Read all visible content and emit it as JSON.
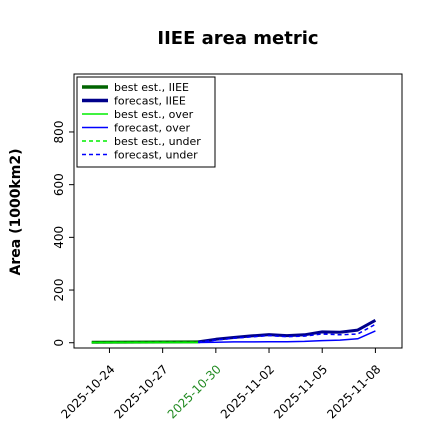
{
  "chart_data": {
    "type": "line",
    "title": "IIEE area metric",
    "xlabel": "",
    "ylabel": "Area (1000km2)",
    "ylim": [
      -20,
      1020
    ],
    "xlim": [
      "2025-10-22T00:00",
      "2025-11-09T12:00"
    ],
    "yticks": [
      0,
      200,
      400,
      600,
      800
    ],
    "xticks": [
      "2025-10-24",
      "2025-10-27",
      "2025-10-30",
      "2025-11-02",
      "2025-11-05",
      "2025-11-08"
    ],
    "highlight_xtick": "2025-10-30",
    "highlight_color": "#228B22",
    "grid": false,
    "legend_position": "top-left",
    "series": [
      {
        "name": "best est., IIEE",
        "color": "#006400",
        "style": "solid",
        "weight": "bold",
        "x": [
          "2025-10-23",
          "2025-10-29"
        ],
        "y": [
          2,
          3
        ]
      },
      {
        "name": "forecast, IIEE",
        "color": "#00008B",
        "style": "solid",
        "weight": "bold",
        "x": [
          "2025-10-29",
          "2025-10-30",
          "2025-10-31",
          "2025-11-01",
          "2025-11-02",
          "2025-11-03",
          "2025-11-04",
          "2025-11-05",
          "2025-11-06",
          "2025-11-07",
          "2025-11-08"
        ],
        "y": [
          3,
          13,
          20,
          26,
          31,
          27,
          30,
          41,
          40,
          48,
          85
        ]
      },
      {
        "name": "best est., over",
        "color": "#00EE00",
        "style": "solid",
        "weight": "thin",
        "x": [
          "2025-10-23",
          "2025-10-29"
        ],
        "y": [
          1,
          1
        ]
      },
      {
        "name": "forecast, over",
        "color": "#0000FF",
        "style": "solid",
        "weight": "thin",
        "x": [
          "2025-10-29",
          "2025-10-30",
          "2025-10-31",
          "2025-11-01",
          "2025-11-02",
          "2025-11-03",
          "2025-11-04",
          "2025-11-05",
          "2025-11-06",
          "2025-11-07",
          "2025-11-08"
        ],
        "y": [
          1,
          2,
          3,
          3,
          4,
          4,
          5,
          8,
          10,
          15,
          45
        ]
      },
      {
        "name": "best est., under",
        "color": "#00EE00",
        "style": "dashed",
        "weight": "thin",
        "x": [
          "2025-10-23",
          "2025-10-29"
        ],
        "y": [
          1,
          2
        ]
      },
      {
        "name": "forecast, under",
        "color": "#0000FF",
        "style": "dashed",
        "weight": "thin",
        "x": [
          "2025-10-29",
          "2025-10-30",
          "2025-10-31",
          "2025-11-01",
          "2025-11-02",
          "2025-11-03",
          "2025-11-04",
          "2025-11-05",
          "2025-11-06",
          "2025-11-07",
          "2025-11-08"
        ],
        "y": [
          2,
          10,
          17,
          22,
          27,
          23,
          25,
          33,
          30,
          33,
          70
        ]
      }
    ]
  }
}
